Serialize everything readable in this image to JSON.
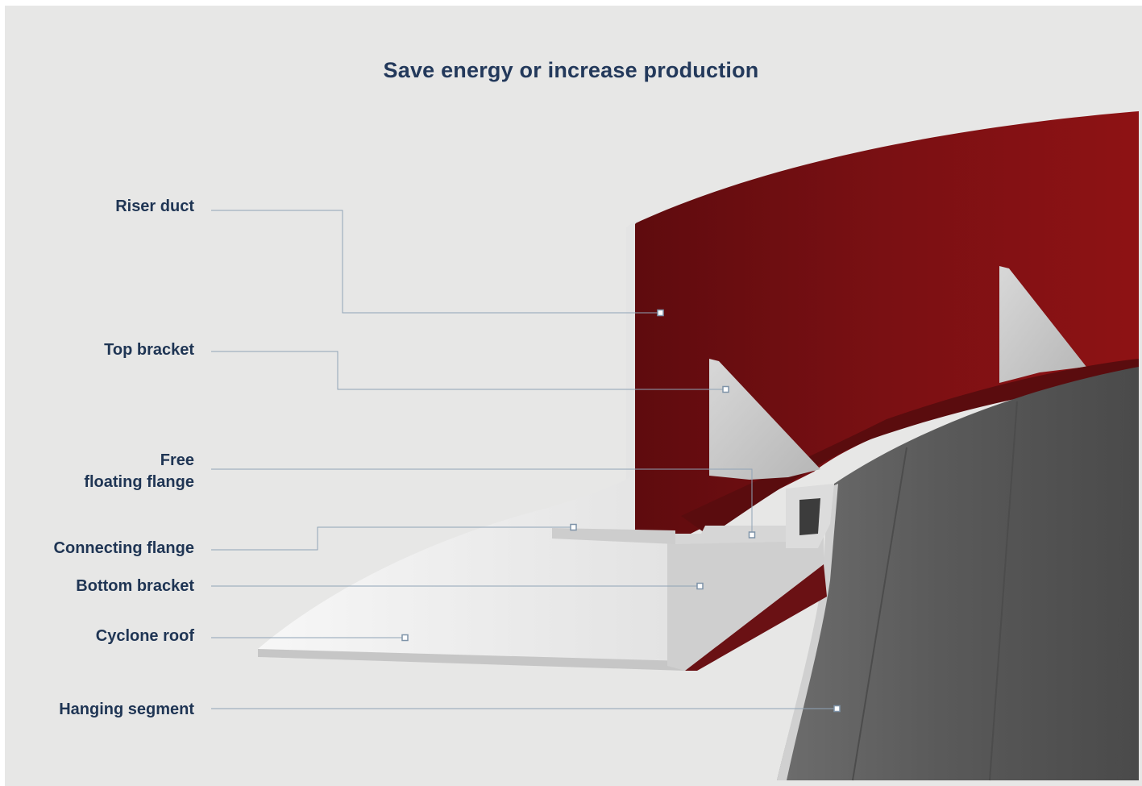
{
  "title": "Save energy or increase production",
  "colors": {
    "background": "#e7e7e6",
    "title_text": "#23395b",
    "label_text": "#1f3554",
    "leader_line": "#8fa3b6",
    "riser_duct": "#7c1114",
    "hanging_segment": "#595959",
    "bracket": "#c9c9c9"
  },
  "labels": {
    "riser_duct": "Riser duct",
    "top_bracket": "Top bracket",
    "free_floating_flange_line1": "Free",
    "free_floating_flange_line2": "floating flange",
    "connecting_flange": "Connecting flange",
    "bottom_bracket": "Bottom bracket",
    "cyclone_roof": "Cyclone roof",
    "hanging_segment": "Hanging segment"
  }
}
